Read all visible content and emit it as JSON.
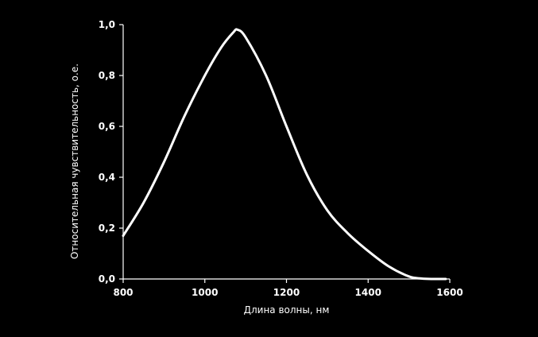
{
  "chart_data": {
    "type": "line",
    "title": "",
    "xlabel": "Длина волны, нм",
    "ylabel": "Относительная чувствительность, о.е.",
    "xlim": [
      800,
      1600
    ],
    "ylim": [
      0,
      1.0
    ],
    "x_ticks": [
      800,
      1000,
      1200,
      1400,
      1600
    ],
    "x_tick_labels": [
      "800",
      "1000",
      "1200",
      "1400",
      "1600"
    ],
    "y_ticks": [
      0,
      0.2,
      0.4,
      0.6,
      0.8,
      1.0
    ],
    "y_tick_labels": [
      "0,0",
      "0,2",
      "0,4",
      "0,6",
      "0,8",
      "1,0"
    ],
    "grid": false,
    "colors": {
      "background": "#000000",
      "line": "#ffffff",
      "axes": "#ffffff"
    },
    "series": [
      {
        "x": [
          800,
          850,
          900,
          950,
          1000,
          1040,
          1070,
          1080,
          1100,
          1150,
          1200,
          1250,
          1300,
          1350,
          1400,
          1450,
          1500,
          1530,
          1560,
          1590
        ],
        "y": [
          0.17,
          0.3,
          0.46,
          0.64,
          0.8,
          0.91,
          0.97,
          0.98,
          0.95,
          0.8,
          0.6,
          0.41,
          0.27,
          0.18,
          0.11,
          0.05,
          0.01,
          0.002,
          0.0,
          0.0
        ]
      }
    ]
  }
}
